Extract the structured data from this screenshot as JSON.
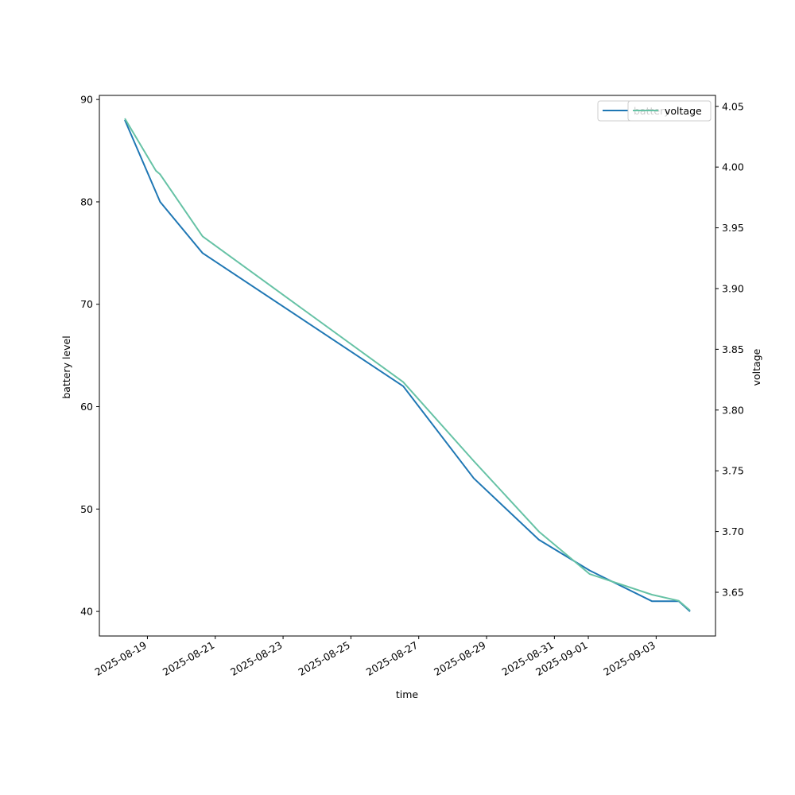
{
  "chart_data": {
    "type": "line",
    "xlabel": "time",
    "ylabel_left": "battery level",
    "ylabel_right": "voltage",
    "xlim": [
      "2025-08-17T14:00",
      "2025-09-04T18:00"
    ],
    "ylim_left": [
      37.6,
      90.4
    ],
    "ylim_right": [
      3.614,
      4.059
    ],
    "x_ticks": [
      "2025-08-19",
      "2025-08-21",
      "2025-08-23",
      "2025-08-25",
      "2025-08-27",
      "2025-08-29",
      "2025-08-31",
      "2025-09-01",
      "2025-09-03"
    ],
    "y_ticks_left": [
      40,
      50,
      60,
      70,
      80,
      90
    ],
    "y_ticks_right": [
      3.65,
      3.7,
      3.75,
      3.8,
      3.85,
      3.9,
      3.95,
      4.0,
      4.05
    ],
    "grid": false,
    "legend": {
      "placement": "top-right",
      "entries": [
        "battery",
        "voltage"
      ]
    },
    "series": [
      {
        "name": "battery",
        "axis": "left",
        "color": "#1f77b4",
        "points": [
          {
            "x": "2025-08-18T08:00",
            "y": 88
          },
          {
            "x": "2025-08-19T09:00",
            "y": 80
          },
          {
            "x": "2025-08-20T15:00",
            "y": 75
          },
          {
            "x": "2025-08-26T13:00",
            "y": 62
          },
          {
            "x": "2025-08-28T15:00",
            "y": 53
          },
          {
            "x": "2025-08-30T13:00",
            "y": 47
          },
          {
            "x": "2025-09-01T01:00",
            "y": 44
          },
          {
            "x": "2025-09-02T21:00",
            "y": 41
          },
          {
            "x": "2025-09-03T16:00",
            "y": 41
          },
          {
            "x": "2025-09-04T00:00",
            "y": 40
          }
        ]
      },
      {
        "name": "voltage",
        "axis": "right",
        "color": "#66c2a5",
        "points": [
          {
            "x": "2025-08-18T08:00",
            "y": 4.04
          },
          {
            "x": "2025-08-19T06:00",
            "y": 3.997
          },
          {
            "x": "2025-08-19T09:00",
            "y": 3.994
          },
          {
            "x": "2025-08-20T15:00",
            "y": 3.943
          },
          {
            "x": "2025-08-26T13:00",
            "y": 3.823
          },
          {
            "x": "2025-08-28T15:00",
            "y": 3.758
          },
          {
            "x": "2025-08-30T13:00",
            "y": 3.7
          },
          {
            "x": "2025-09-01T01:00",
            "y": 3.665
          },
          {
            "x": "2025-09-02T21:00",
            "y": 3.648
          },
          {
            "x": "2025-09-03T16:00",
            "y": 3.643
          },
          {
            "x": "2025-09-04T00:00",
            "y": 3.635
          }
        ]
      }
    ]
  }
}
